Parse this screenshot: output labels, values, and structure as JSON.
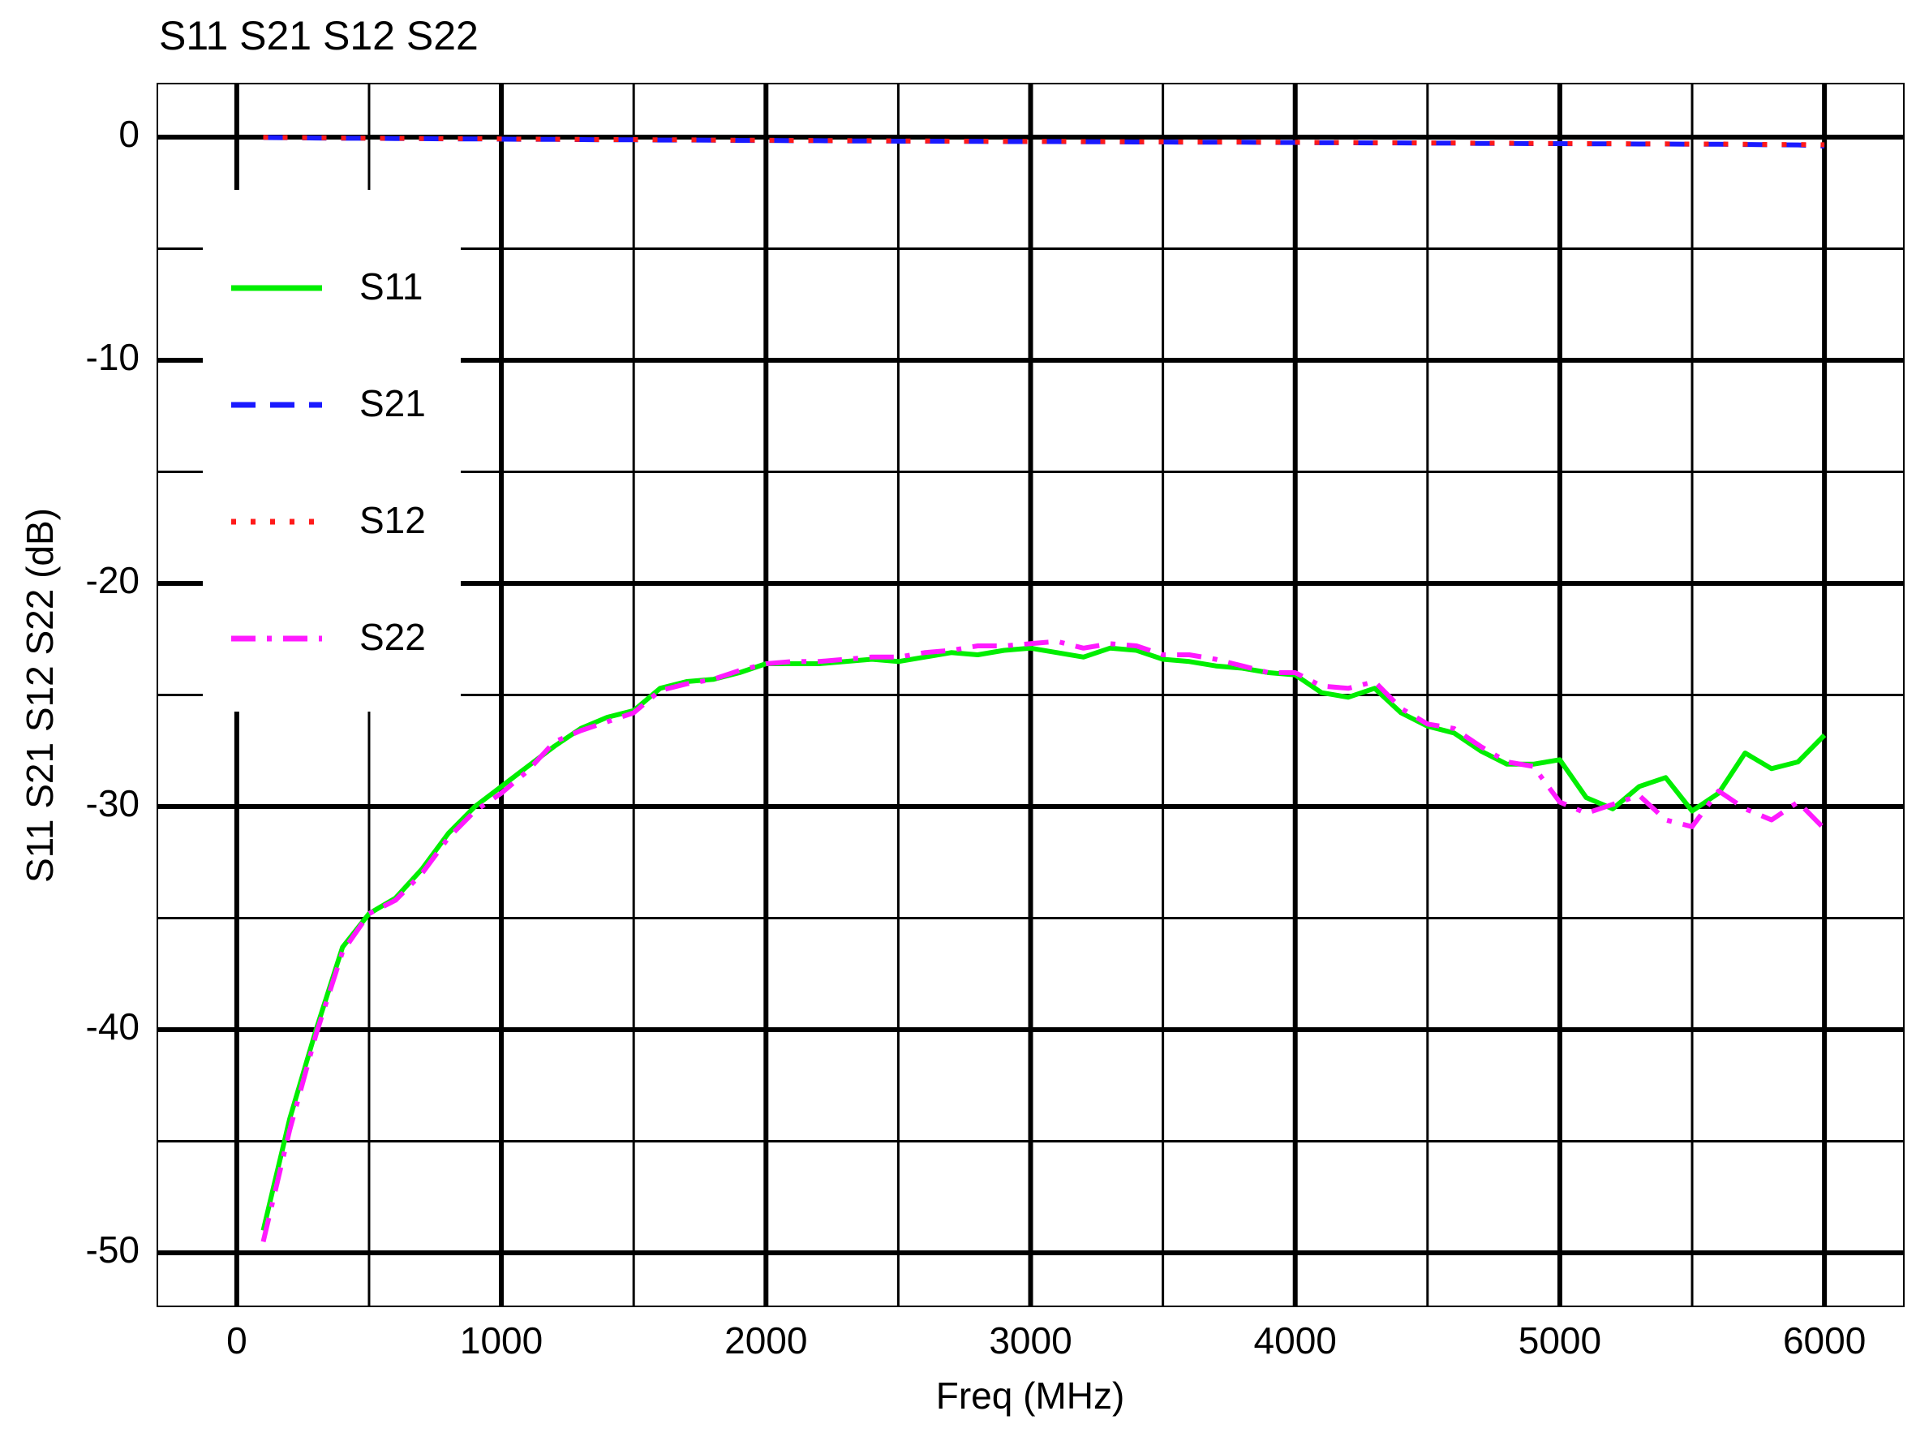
{
  "chart_data": {
    "type": "line",
    "title": "S11 S21 S12 S22",
    "x_label": "Freq (MHz)",
    "y_label": "S11 S21 S12 S22  (dB)",
    "xlim": [
      -300,
      6300
    ],
    "ylim": [
      -52.4,
      2.4
    ],
    "xticks": [
      0,
      1000,
      2000,
      3000,
      4000,
      5000,
      6000
    ],
    "yticks": [
      0,
      -10,
      -20,
      -30,
      -40,
      -50
    ],
    "minor_xticks": [
      500,
      1500,
      2500,
      3500,
      4500,
      5500
    ],
    "minor_yticks": [
      -5,
      -15,
      -25,
      -35,
      -45
    ],
    "grid": true,
    "legend": "upper left",
    "x": [
      100,
      200,
      300,
      400,
      500,
      600,
      700,
      800,
      900,
      1000,
      1100,
      1200,
      1300,
      1400,
      1500,
      1600,
      1700,
      1800,
      1900,
      2000,
      2100,
      2200,
      2300,
      2400,
      2500,
      2600,
      2700,
      2800,
      2900,
      3000,
      3100,
      3200,
      3300,
      3400,
      3500,
      3600,
      3700,
      3800,
      3900,
      4000,
      4100,
      4200,
      4300,
      4400,
      4500,
      4600,
      4700,
      4800,
      4900,
      5000,
      5100,
      5200,
      5300,
      5400,
      5500,
      5600,
      5700,
      5800,
      5900,
      6000
    ],
    "series": [
      {
        "name": "S11",
        "color": "#00ee00",
        "dash": "solid",
        "values": [
          -49,
          -44,
          -40,
          -36.3,
          -34.8,
          -34.1,
          -32.8,
          -31.2,
          -30,
          -29.1,
          -28.2,
          -27.3,
          -26.5,
          -26,
          -25.7,
          -24.7,
          -24.4,
          -24.3,
          -24,
          -23.6,
          -23.6,
          -23.6,
          -23.5,
          -23.4,
          -23.5,
          -23.3,
          -23.1,
          -23.2,
          -23,
          -22.9,
          -23.1,
          -23.3,
          -22.9,
          -23,
          -23.4,
          -23.5,
          -23.7,
          -23.8,
          -24,
          -24.1,
          -24.9,
          -25.1,
          -24.7,
          -25.8,
          -26.4,
          -26.7,
          -27.5,
          -28.1,
          -28.1,
          -27.9,
          -29.6,
          -30.1,
          -29.1,
          -28.7,
          -30.2,
          -29.4,
          -27.6,
          -28.3,
          -28,
          -26.8
        ]
      },
      {
        "name": "S21",
        "color": "#1a1aff",
        "dash": "dashed",
        "values": [
          -0.02,
          -0.03,
          -0.04,
          -0.05,
          -0.05,
          -0.06,
          -0.07,
          -0.08,
          -0.08,
          -0.09,
          -0.1,
          -0.1,
          -0.11,
          -0.12,
          -0.12,
          -0.13,
          -0.13,
          -0.14,
          -0.15,
          -0.15,
          -0.16,
          -0.16,
          -0.17,
          -0.17,
          -0.18,
          -0.18,
          -0.19,
          -0.19,
          -0.2,
          -0.2,
          -0.2,
          -0.21,
          -0.21,
          -0.22,
          -0.22,
          -0.23,
          -0.23,
          -0.23,
          -0.24,
          -0.24,
          -0.25,
          -0.25,
          -0.26,
          -0.26,
          -0.27,
          -0.27,
          -0.28,
          -0.28,
          -0.29,
          -0.29,
          -0.3,
          -0.3,
          -0.31,
          -0.31,
          -0.32,
          -0.32,
          -0.33,
          -0.34,
          -0.35,
          -0.4
        ]
      },
      {
        "name": "S12",
        "color": "#ff1a1a",
        "dash": "dotted",
        "values": [
          -0.01,
          -0.02,
          -0.03,
          -0.04,
          -0.05,
          -0.05,
          -0.06,
          -0.07,
          -0.07,
          -0.08,
          -0.09,
          -0.09,
          -0.1,
          -0.11,
          -0.11,
          -0.12,
          -0.12,
          -0.13,
          -0.14,
          -0.14,
          -0.15,
          -0.15,
          -0.16,
          -0.16,
          -0.17,
          -0.17,
          -0.18,
          -0.18,
          -0.19,
          -0.19,
          -0.19,
          -0.2,
          -0.2,
          -0.21,
          -0.21,
          -0.22,
          -0.22,
          -0.22,
          -0.23,
          -0.23,
          -0.24,
          -0.24,
          -0.25,
          -0.25,
          -0.26,
          -0.26,
          -0.27,
          -0.27,
          -0.28,
          -0.28,
          -0.29,
          -0.29,
          -0.3,
          -0.3,
          -0.31,
          -0.31,
          -0.32,
          -0.33,
          -0.33,
          -0.34
        ]
      },
      {
        "name": "S22",
        "color": "#ff1aff",
        "dash": "dashdot",
        "values": [
          -49.5,
          -44.5,
          -40.2,
          -36.5,
          -34.8,
          -34.2,
          -33,
          -31.4,
          -30.2,
          -29.4,
          -28.4,
          -27.1,
          -26.6,
          -26.2,
          -25.8,
          -24.8,
          -24.5,
          -24.3,
          -23.9,
          -23.6,
          -23.5,
          -23.5,
          -23.4,
          -23.3,
          -23.3,
          -23.1,
          -23,
          -22.8,
          -22.8,
          -22.7,
          -22.6,
          -22.9,
          -22.7,
          -22.8,
          -23.2,
          -23.2,
          -23.4,
          -23.7,
          -24,
          -24,
          -24.6,
          -24.7,
          -24.4,
          -25.6,
          -26.3,
          -26.5,
          -27.3,
          -28,
          -28.2,
          -29.8,
          -30.3,
          -29.9,
          -29.5,
          -30.6,
          -30.9,
          -29.3,
          -30.1,
          -30.6,
          -29.8,
          -31
        ]
      }
    ]
  }
}
